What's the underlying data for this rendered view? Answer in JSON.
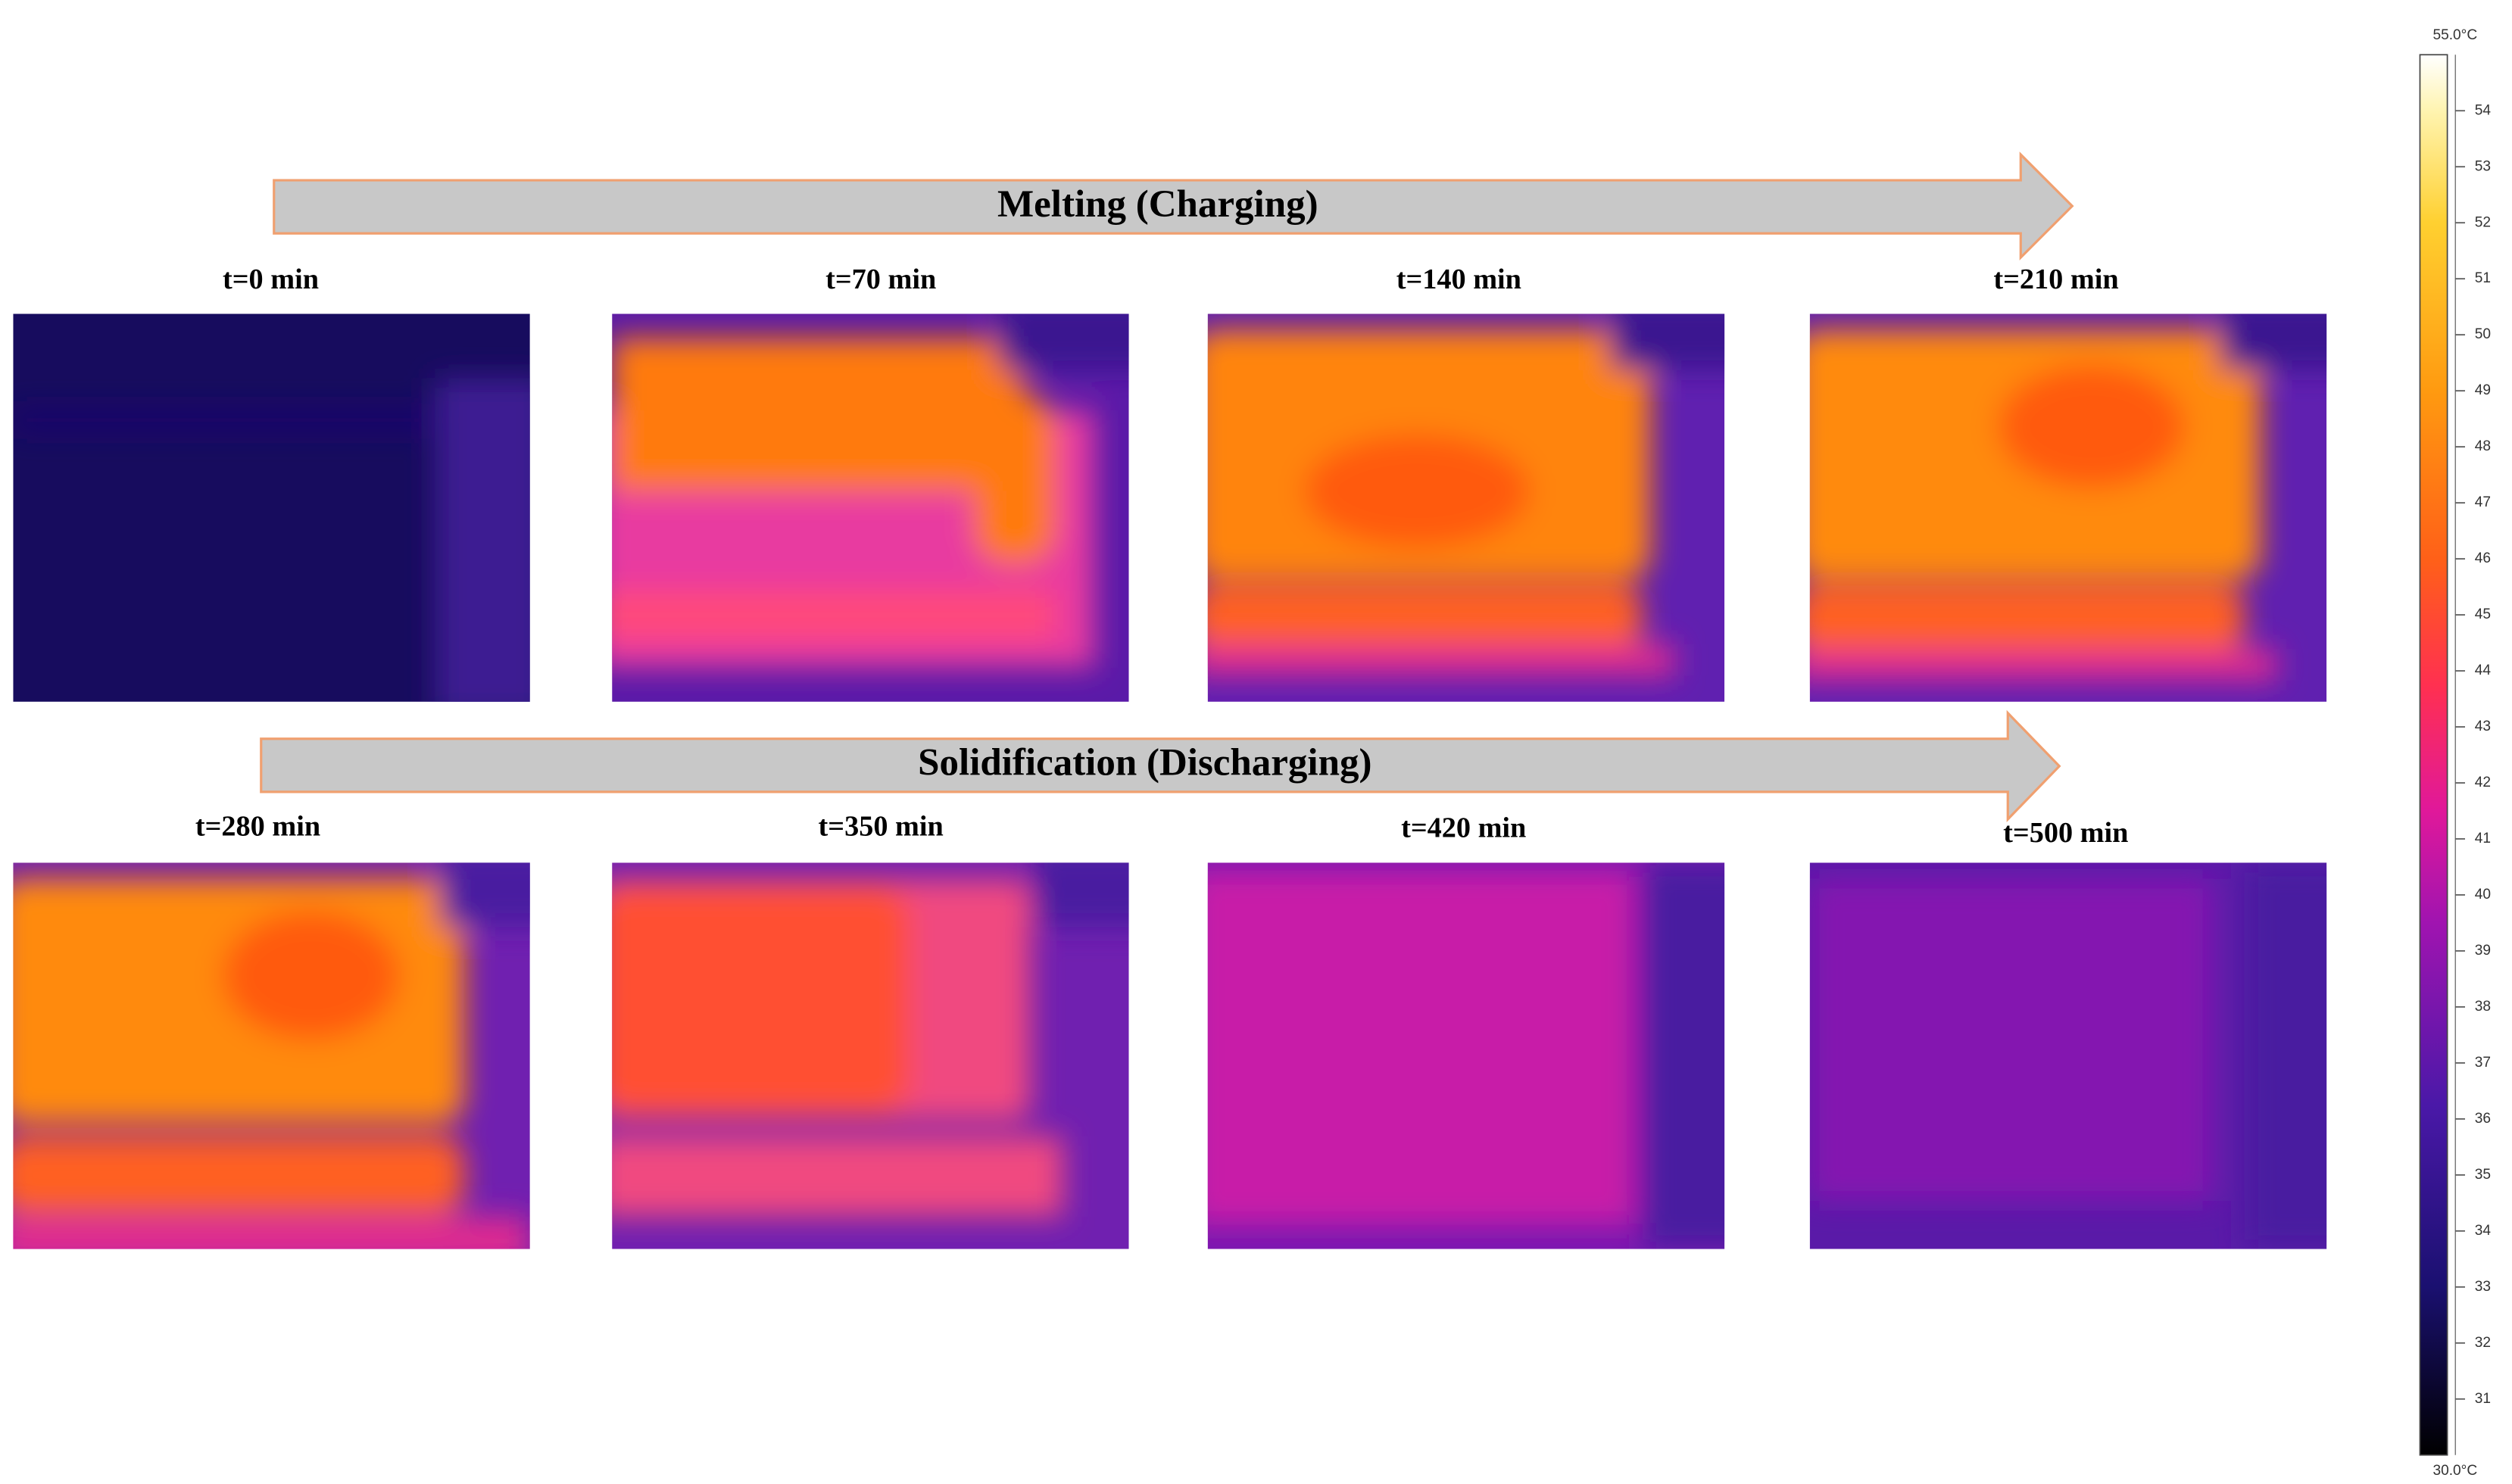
{
  "arrows": {
    "charging": "Melting (Charging)",
    "discharging": "Solidification (Discharging)"
  },
  "panels": [
    {
      "label": "t=0 min"
    },
    {
      "label": "t=70 min"
    },
    {
      "label": "t=140 min"
    },
    {
      "label": "t=210 min"
    },
    {
      "label": "t=280 min"
    },
    {
      "label": "t=350 min"
    },
    {
      "label": "t=420 min"
    },
    {
      "label": "t=500 min"
    }
  ],
  "colorbar": {
    "max": {
      "value": 55,
      "label": "55.0°C"
    },
    "min": {
      "value": 30,
      "label": "30.0°C"
    },
    "ticks": [
      31,
      32,
      33,
      34,
      35,
      36,
      37,
      38,
      39,
      40,
      41,
      42,
      43,
      44,
      45,
      46,
      47,
      48,
      49,
      50,
      51,
      52,
      53,
      54
    ]
  }
}
